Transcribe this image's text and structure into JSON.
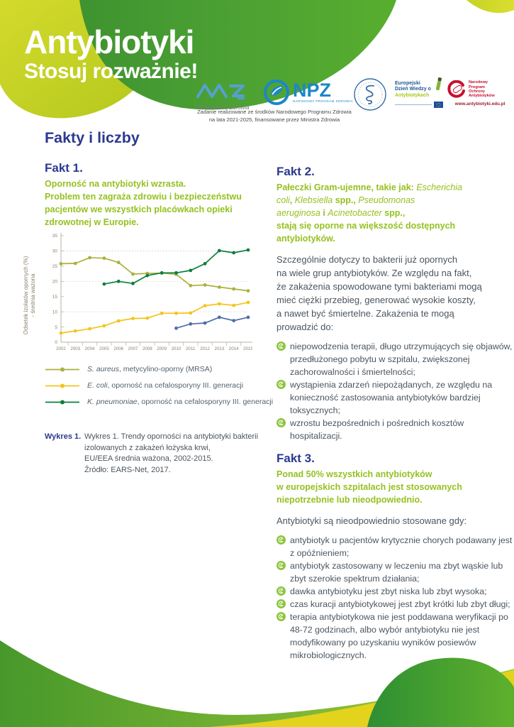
{
  "header": {
    "title": "Antybiotyki",
    "subtitle": "Stosuj rozważnie!",
    "funding_note": [
      "Zadanie realizowane ze środków Narodowego Programu Zdrowia",
      "na lata 2021-2025, finansowane przez Ministra Zdrowia"
    ],
    "logos": {
      "mz_label": "Ministerstwo Zdrowia",
      "npz_abbr": "NPZ",
      "npz_sub": "NARODOWY PROGRAM ZDROWIA",
      "edwa_lines": [
        "Europejski",
        "Dzień Wiedzy o",
        "Antybiotykach"
      ],
      "npoa_lines": [
        "Narodowy",
        "Program",
        "Ochrony",
        "Antybiotyków"
      ],
      "npoa_url": "www.antybiotyki.edu.pl"
    }
  },
  "page_title": "Fakty i liczby",
  "fact1": {
    "heading": "Fakt 1.",
    "lead_lines": [
      "Oporność na antybiotyki wzrasta.",
      "Problem ten zagraża zdrowiu i bezpieczeństwu",
      "pacjentów we wszystkich placówkach opieki",
      "zdrowotnej w Europie."
    ]
  },
  "chart_data": {
    "type": "line",
    "ylabel_lines": [
      "Odsetek izolatów opornych (%)",
      "- średnia ważona"
    ],
    "x": [
      "2002",
      "2003",
      "2004",
      "2005",
      "2006",
      "2007",
      "2008",
      "2009",
      "2010",
      "2011",
      "2012",
      "2013",
      "2014",
      "2015"
    ],
    "ylim": [
      0,
      35
    ],
    "yticks": [
      0,
      5,
      10,
      15,
      20,
      25,
      30,
      35
    ],
    "grid_y": [
      10,
      20,
      30
    ],
    "grid": "dashed horizontal",
    "legend_position": "below",
    "axis_color": "#b9b2a4",
    "grid_color": "#cfcabe",
    "tick_label_color": "#8b8171",
    "series": [
      {
        "name": "S. aureus, metycylino-oporny (MRSA)",
        "color": "#a9b23c",
        "values": [
          25.8,
          25.9,
          27.8,
          27.6,
          26.2,
          22.4,
          22.6,
          22.7,
          22.3,
          18.6,
          18.8,
          18.1,
          17.5,
          16.9
        ]
      },
      {
        "name": "E. coli, oporność na cefalosporyny III. generacji",
        "color": "#f4c41b",
        "values": [
          3.0,
          3.7,
          4.4,
          5.4,
          7.0,
          7.8,
          7.9,
          9.5,
          9.5,
          9.6,
          12.0,
          12.6,
          12.1,
          13.1
        ]
      },
      {
        "name": "K. pneumoniae, oporność na cefalosporyny III. generacji",
        "color": "#0c7f3f",
        "values": [
          null,
          null,
          null,
          19.1,
          20.0,
          19.3,
          21.9,
          22.8,
          22.8,
          23.6,
          25.8,
          30.1,
          29.4,
          30.3
        ]
      },
      {
        "name": "seria niebieska (bez opisu w legendzie)",
        "color": "#4d6ea8",
        "values": [
          null,
          null,
          null,
          null,
          null,
          null,
          null,
          null,
          4.6,
          6.0,
          6.3,
          8.2,
          7.1,
          8.2
        ]
      }
    ],
    "legend": [
      {
        "color": "#a9b23c",
        "segments": [
          {
            "t": "S. aureus",
            "i": true
          },
          {
            "t": ", metycylino-oporny   (MRSA)"
          }
        ]
      },
      {
        "color": "#f4c41b",
        "segments": [
          {
            "t": "E. coli",
            "i": true
          },
          {
            "t": ", oporność  na cefalosporyny III. generacji"
          }
        ]
      },
      {
        "color": "#0c7f3f",
        "segments": [
          {
            "t": "K. pneumoniae",
            "i": true
          },
          {
            "t": ", oporność na cefalosporyny III. generacji"
          }
        ]
      }
    ]
  },
  "caption": {
    "label": "Wykres 1.",
    "lines": [
      "Wykres 1. Trendy oporności na antybiotyki bakterii",
      "izolowanych z zakażeń łożyska krwi,",
      "EU/EEA średnia ważona, 2002-2015.",
      "Źródło: EARS-Net, 2017."
    ]
  },
  "fact2": {
    "heading": "Fakt 2.",
    "lead_segments": [
      {
        "t": "Pałeczki Gram-ujemne, takie jak: "
      },
      {
        "t": "Escherichia",
        "i": true
      },
      {
        "t": "\n"
      },
      {
        "t": "coli",
        "i": true
      },
      {
        "t": ", "
      },
      {
        "t": "Klebsiella",
        "i": true
      },
      {
        "t": " spp., "
      },
      {
        "t": "Pseudomonas",
        "i": true
      },
      {
        "t": "\n"
      },
      {
        "t": "aeruginosa",
        "i": true
      },
      {
        "t": " i "
      },
      {
        "t": "Acinetobacter",
        "i": true
      },
      {
        "t": " spp.,",
        "": ""
      },
      {
        "t": "\n"
      },
      {
        "t": "stają się oporne na większość dostępnych"
      },
      {
        "t": "\n"
      },
      {
        "t": "antybiotyków."
      }
    ],
    "body_lines": [
      "Szczególnie dotyczy to bakterii już opornych",
      "na wiele grup antybiotyków. Ze względu na fakt,",
      "że zakażenia spowodowane tymi bakteriami mogą",
      "mieć ciężki przebieg, generować wysokie koszty,",
      "a nawet być śmiertelne. Zakażenia te mogą",
      "prowadzić do:"
    ],
    "bullets": [
      "niepowodzenia terapii, długo utrzymujących się objawów, przedłużonego pobytu w szpitalu, zwiększonej zachorowalności i śmiertelności;",
      "wystąpienia zdarzeń niepożądanych, ze względu na konieczność zastosowania antybiotyków bardziej toksycznych;",
      "wzrostu bezpośrednich i pośrednich kosztów hospitalizacji."
    ]
  },
  "fact3": {
    "heading": "Fakt 3.",
    "lead_lines": [
      "Ponad 50% wszystkich antybiotyków",
      "w europejskich szpitalach jest stosowanych",
      "niepotrzebnie lub nieodpowiednio."
    ],
    "intro": "Antybiotyki są nieodpowiednio stosowane gdy:",
    "bullets": [
      "antybiotyk u pacjentów krytycznie chorych podawany jest z opóźnieniem;",
      "antybiotyk zastosowany w leczeniu ma zbyt wąskie lub zbyt szerokie spektrum działania;",
      "dawka antybiotyku jest zbyt niska lub zbyt wysoka;",
      "czas kuracji antybiotykowej jest zbyt krótki lub zbyt długi;",
      "terapia antybiotykowa nie jest poddawana weryfikacji po 48-72 godzinach, albo wybór antybiotyku nie jest modyfikowany po uzyskaniu wyników posiewów mikrobiologicznych."
    ]
  },
  "colors": {
    "navy": "#2b3990",
    "green_text": "#95c11f",
    "bullet_green": "#8dc63f",
    "body_text": "#4a5660"
  }
}
